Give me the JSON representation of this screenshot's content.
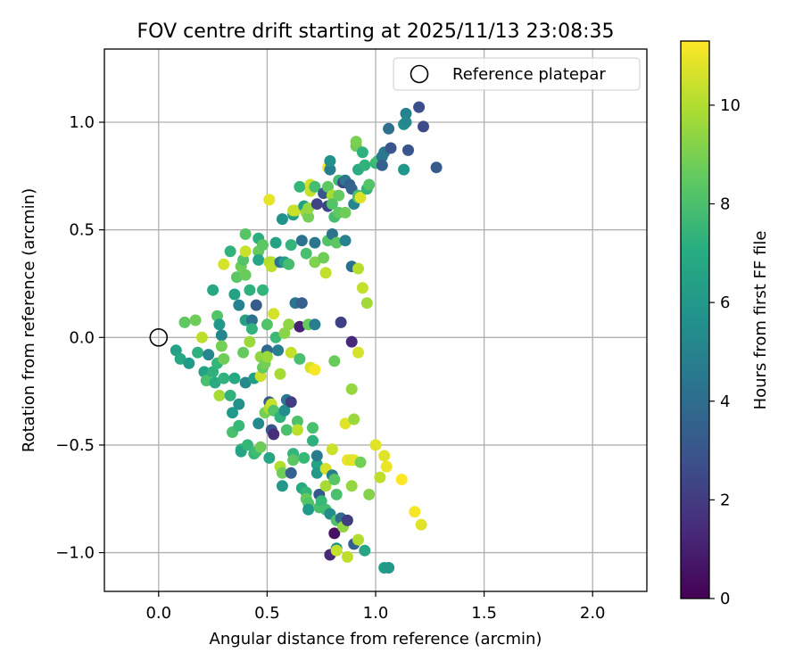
{
  "chart_data": {
    "type": "scatter",
    "title": "FOV centre drift starting at 2025/11/13 23:08:35",
    "xlabel": "Angular distance from reference (arcmin)",
    "ylabel": "Rotation from reference (arcmin)",
    "xlim": [
      -0.25,
      2.25
    ],
    "ylim": [
      -1.18,
      1.34
    ],
    "xticks": [
      0.0,
      0.5,
      1.0,
      1.5,
      2.0
    ],
    "xtick_labels": [
      "0.0",
      "0.5",
      "1.0",
      "1.5",
      "2.0"
    ],
    "yticks": [
      -1.0,
      -0.5,
      0.0,
      0.5,
      1.0
    ],
    "ytick_labels": [
      "−1.0",
      "−0.5",
      "0.0",
      "0.5",
      "1.0"
    ],
    "grid": true,
    "legend": {
      "position": "top-right",
      "label": "Reference platepar"
    },
    "reference_point": {
      "x": 0.0,
      "y": 0.0
    },
    "colorbar": {
      "label": "Hours from first FF file",
      "range": [
        0,
        11.3
      ],
      "ticks": [
        0,
        2,
        4,
        6,
        8,
        10
      ],
      "tick_labels": [
        "0",
        "2",
        "4",
        "6",
        "8",
        "10"
      ],
      "colormap": "viridis"
    },
    "points": [
      [
        0.08,
        -0.06,
        6.5
      ],
      [
        0.1,
        -0.1,
        6.8
      ],
      [
        0.12,
        0.07,
        8.5
      ],
      [
        0.14,
        -0.12,
        6.2
      ],
      [
        0.17,
        0.08,
        8.8
      ],
      [
        0.18,
        -0.07,
        7.2
      ],
      [
        0.2,
        0.0,
        10.2
      ],
      [
        0.21,
        -0.16,
        6.5
      ],
      [
        0.22,
        -0.2,
        8.0
      ],
      [
        0.23,
        -0.08,
        5.2
      ],
      [
        0.25,
        0.22,
        6.8
      ],
      [
        0.25,
        -0.16,
        7.2
      ],
      [
        0.26,
        -0.21,
        6.9
      ],
      [
        0.27,
        0.1,
        8.2
      ],
      [
        0.27,
        -0.12,
        7.5
      ],
      [
        0.28,
        0.06,
        6.0
      ],
      [
        0.28,
        -0.27,
        9.8
      ],
      [
        0.29,
        0.01,
        5.2
      ],
      [
        0.29,
        -0.04,
        8.9
      ],
      [
        0.3,
        -0.19,
        7.3
      ],
      [
        0.3,
        -0.1,
        8.8
      ],
      [
        0.3,
        0.34,
        10.6
      ],
      [
        0.33,
        0.4,
        7.3
      ],
      [
        0.33,
        -0.27,
        7.2
      ],
      [
        0.34,
        -0.35,
        6.1
      ],
      [
        0.34,
        -0.44,
        8.0
      ],
      [
        0.35,
        0.2,
        6.5
      ],
      [
        0.35,
        -0.19,
        6.8
      ],
      [
        0.36,
        0.28,
        8.4
      ],
      [
        0.37,
        -0.31,
        5.7
      ],
      [
        0.37,
        0.15,
        5.0
      ],
      [
        0.37,
        -0.41,
        7.6
      ],
      [
        0.38,
        0.33,
        8.8
      ],
      [
        0.38,
        -0.52,
        7.5
      ],
      [
        0.38,
        -0.53,
        6.6
      ],
      [
        0.39,
        0.36,
        8.2
      ],
      [
        0.39,
        -0.07,
        8.6
      ],
      [
        0.4,
        0.4,
        10.4
      ],
      [
        0.4,
        0.48,
        8.3
      ],
      [
        0.4,
        0.29,
        8.7
      ],
      [
        0.4,
        0.08,
        6.5
      ],
      [
        0.4,
        -0.21,
        5.4
      ],
      [
        0.41,
        -0.5,
        7.5
      ],
      [
        0.42,
        0.22,
        7.2
      ],
      [
        0.42,
        -0.02,
        9.6
      ],
      [
        0.43,
        0.08,
        4.2
      ],
      [
        0.43,
        0.04,
        7.3
      ],
      [
        0.44,
        -0.19,
        6.4
      ],
      [
        0.44,
        -0.54,
        7.5
      ],
      [
        0.45,
        0.15,
        3.3
      ],
      [
        0.45,
        -0.53,
        7.8
      ],
      [
        0.46,
        0.46,
        7.1
      ],
      [
        0.46,
        0.4,
        8.6
      ],
      [
        0.46,
        0.36,
        6.7
      ],
      [
        0.46,
        -0.4,
        5.4
      ],
      [
        0.47,
        -0.09,
        9.4
      ],
      [
        0.47,
        -0.18,
        10.4
      ],
      [
        0.47,
        -0.51,
        8.8
      ],
      [
        0.48,
        0.22,
        7.4
      ],
      [
        0.48,
        0.43,
        8.4
      ],
      [
        0.48,
        -0.14,
        8.6
      ],
      [
        0.49,
        -0.12,
        8.9
      ],
      [
        0.49,
        -0.35,
        8.9
      ],
      [
        0.5,
        0.06,
        8.2
      ],
      [
        0.5,
        -0.06,
        3.8
      ],
      [
        0.5,
        -0.09,
        9.6
      ],
      [
        0.51,
        0.64,
        10.9
      ],
      [
        0.51,
        0.35,
        10.0
      ],
      [
        0.51,
        -0.3,
        3.3
      ],
      [
        0.51,
        -0.33,
        9.9
      ],
      [
        0.51,
        -0.56,
        6.7
      ],
      [
        0.52,
        0.35,
        10.0
      ],
      [
        0.52,
        0.33,
        10.2
      ],
      [
        0.52,
        -0.31,
        10.4
      ],
      [
        0.52,
        -0.43,
        3.0
      ],
      [
        0.53,
        -0.45,
        1.5
      ],
      [
        0.53,
        0.11,
        10.6
      ],
      [
        0.53,
        -0.34,
        8.2
      ],
      [
        0.54,
        0.44,
        6.5
      ],
      [
        0.54,
        0.0,
        7.7
      ],
      [
        0.55,
        -0.06,
        4.9
      ],
      [
        0.56,
        0.35,
        4.3
      ],
      [
        0.56,
        -0.17,
        9.8
      ],
      [
        0.56,
        -0.37,
        7.2
      ],
      [
        0.56,
        -0.6,
        10.0
      ],
      [
        0.57,
        0.55,
        5.8
      ],
      [
        0.57,
        -0.63,
        8.8
      ],
      [
        0.57,
        -0.69,
        6.0
      ],
      [
        0.58,
        0.35,
        6.4
      ],
      [
        0.58,
        0.02,
        9.3
      ],
      [
        0.58,
        -0.34,
        5.6
      ],
      [
        0.59,
        -0.29,
        4.6
      ],
      [
        0.59,
        -0.43,
        8.0
      ],
      [
        0.6,
        0.34,
        7.9
      ],
      [
        0.6,
        0.06,
        9.4
      ],
      [
        0.61,
        0.43,
        7.4
      ],
      [
        0.61,
        -0.07,
        10.3
      ],
      [
        0.61,
        -0.3,
        2.0
      ],
      [
        0.61,
        -0.63,
        3.5
      ],
      [
        0.62,
        0.57,
        6.4
      ],
      [
        0.62,
        0.59,
        10.3
      ],
      [
        0.62,
        -0.54,
        7.4
      ],
      [
        0.62,
        -0.57,
        8.4
      ],
      [
        0.63,
        0.16,
        4.4
      ],
      [
        0.63,
        0.59,
        10.4
      ],
      [
        0.64,
        -0.39,
        8.1
      ],
      [
        0.64,
        -0.43,
        10.2
      ],
      [
        0.65,
        0.7,
        7.5
      ],
      [
        0.65,
        0.05,
        1.0
      ],
      [
        0.65,
        -0.1,
        8.0
      ],
      [
        0.66,
        0.16,
        3.4
      ],
      [
        0.66,
        0.45,
        4.2
      ],
      [
        0.66,
        -0.7,
        6.8
      ],
      [
        0.67,
        -0.56,
        7.6
      ],
      [
        0.67,
        0.61,
        6.4
      ],
      [
        0.68,
        -0.72,
        7.5
      ],
      [
        0.68,
        -0.75,
        8.6
      ],
      [
        0.68,
        0.58,
        9.6
      ],
      [
        0.68,
        0.39,
        8.0
      ],
      [
        0.69,
        0.56,
        8.9
      ],
      [
        0.69,
        0.6,
        9.5
      ],
      [
        0.69,
        0.06,
        8.6
      ],
      [
        0.69,
        -0.77,
        8.2
      ],
      [
        0.69,
        -0.8,
        6.1
      ],
      [
        0.7,
        0.71,
        10.5
      ],
      [
        0.7,
        0.68,
        10.3
      ],
      [
        0.7,
        -0.14,
        10.6
      ],
      [
        0.71,
        -0.42,
        8.0
      ],
      [
        0.71,
        -0.48,
        7.2
      ],
      [
        0.72,
        0.7,
        7.9
      ],
      [
        0.72,
        0.44,
        4.5
      ],
      [
        0.72,
        0.06,
        4.8
      ],
      [
        0.72,
        -0.15,
        11.2
      ],
      [
        0.72,
        0.35,
        9.1
      ],
      [
        0.73,
        0.62,
        2.3
      ],
      [
        0.73,
        -0.59,
        6.6
      ],
      [
        0.73,
        -0.63,
        6.0
      ],
      [
        0.73,
        -0.55,
        4.7
      ],
      [
        0.74,
        -0.73,
        3.2
      ],
      [
        0.74,
        -0.79,
        8.0
      ],
      [
        0.75,
        -0.76,
        7.6
      ],
      [
        0.76,
        0.37,
        8.8
      ],
      [
        0.76,
        0.67,
        3.0
      ],
      [
        0.77,
        -0.8,
        7.8
      ],
      [
        0.77,
        -0.69,
        9.8
      ],
      [
        0.77,
        -0.61,
        10.6
      ],
      [
        0.77,
        0.3,
        10.3
      ],
      [
        0.78,
        0.79,
        11.2
      ],
      [
        0.78,
        0.61,
        2.3
      ],
      [
        0.78,
        0.7,
        8.4
      ],
      [
        0.78,
        0.45,
        8.2
      ],
      [
        0.79,
        -1.01,
        1.3
      ],
      [
        0.79,
        0.78,
        4.8
      ],
      [
        0.79,
        0.82,
        5.7
      ],
      [
        0.79,
        -0.82,
        5.5
      ],
      [
        0.8,
        -0.52,
        10.4
      ],
      [
        0.8,
        -0.64,
        4.8
      ],
      [
        0.8,
        0.48,
        4.3
      ],
      [
        0.8,
        0.66,
        9.8
      ],
      [
        0.8,
        0.62,
        8.2
      ],
      [
        0.81,
        -0.66,
        8.3
      ],
      [
        0.81,
        0.56,
        7.9
      ],
      [
        0.81,
        -0.91,
        0.5
      ],
      [
        0.81,
        -0.11,
        8.7
      ],
      [
        0.82,
        0.44,
        8.4
      ],
      [
        0.82,
        -0.73,
        8.0
      ],
      [
        0.82,
        -0.85,
        8.1
      ],
      [
        0.82,
        -0.98,
        5.8
      ],
      [
        0.82,
        -0.99,
        10.3
      ],
      [
        0.83,
        0.58,
        8.5
      ],
      [
        0.83,
        0.73,
        7.8
      ],
      [
        0.83,
        0.66,
        8.6
      ],
      [
        0.84,
        0.07,
        2.2
      ],
      [
        0.84,
        -0.84,
        3.9
      ],
      [
        0.85,
        -0.88,
        9.4
      ],
      [
        0.85,
        0.72,
        2.4
      ],
      [
        0.86,
        0.45,
        5.0
      ],
      [
        0.86,
        0.58,
        8.8
      ],
      [
        0.86,
        0.73,
        4.6
      ],
      [
        0.86,
        -0.4,
        10.8
      ],
      [
        0.87,
        -1.02,
        10.2
      ],
      [
        0.87,
        -0.57,
        11.0
      ],
      [
        0.87,
        -0.85,
        2.0
      ],
      [
        0.88,
        0.71,
        3.5
      ],
      [
        0.89,
        0.69,
        3.7
      ],
      [
        0.89,
        -0.69,
        9.5
      ],
      [
        0.89,
        -0.57,
        10.6
      ],
      [
        0.89,
        -0.02,
        1.3
      ],
      [
        0.89,
        -0.24,
        9.5
      ],
      [
        0.89,
        0.33,
        4.1
      ],
      [
        0.9,
        -0.38,
        9.6
      ],
      [
        0.9,
        0.62,
        5.1
      ],
      [
        0.9,
        -0.96,
        3.5
      ],
      [
        0.9,
        -0.57,
        10.9
      ],
      [
        0.91,
        0.89,
        8.8
      ],
      [
        0.91,
        0.91,
        9.0
      ],
      [
        0.92,
        0.65,
        8.1
      ],
      [
        0.92,
        0.32,
        10.1
      ],
      [
        0.92,
        0.66,
        8.0
      ],
      [
        0.92,
        -0.94,
        10.0
      ],
      [
        0.92,
        -0.07,
        10.6
      ],
      [
        0.92,
        0.78,
        7.0
      ],
      [
        0.93,
        0.65,
        10.7
      ],
      [
        0.93,
        -0.58,
        8.9
      ],
      [
        0.94,
        0.23,
        10.3
      ],
      [
        0.94,
        0.86,
        7.2
      ],
      [
        0.95,
        0.8,
        7.3
      ],
      [
        0.95,
        -0.99,
        6.7
      ],
      [
        0.96,
        0.69,
        7.4
      ],
      [
        0.96,
        0.16,
        9.7
      ],
      [
        0.97,
        0.71,
        8.2
      ],
      [
        0.97,
        -0.73,
        9.2
      ],
      [
        1.0,
        -0.5,
        10.8
      ],
      [
        1.0,
        0.81,
        7.6
      ],
      [
        1.01,
        0.82,
        7.8
      ],
      [
        1.02,
        -0.65,
        10.2
      ],
      [
        1.03,
        0.84,
        4.6
      ],
      [
        1.03,
        0.8,
        3.5
      ],
      [
        1.04,
        0.86,
        4.5
      ],
      [
        1.04,
        -0.55,
        10.8
      ],
      [
        1.04,
        -1.07,
        6.3
      ],
      [
        1.05,
        -0.6,
        11.0
      ],
      [
        1.06,
        -1.07,
        6.0
      ],
      [
        1.06,
        0.97,
        4.2
      ],
      [
        1.07,
        0.88,
        3.0
      ],
      [
        1.12,
        -0.66,
        11.3
      ],
      [
        1.13,
        0.99,
        5.6
      ],
      [
        1.13,
        0.78,
        5.9
      ],
      [
        1.14,
        1.04,
        5.0
      ],
      [
        1.14,
        1.0,
        5.3
      ],
      [
        1.15,
        0.87,
        3.0
      ],
      [
        1.18,
        -0.81,
        11.2
      ],
      [
        1.2,
        1.07,
        2.8
      ],
      [
        1.21,
        -0.87,
        10.8
      ],
      [
        1.22,
        0.98,
        2.6
      ],
      [
        1.28,
        0.79,
        3.3
      ]
    ]
  }
}
